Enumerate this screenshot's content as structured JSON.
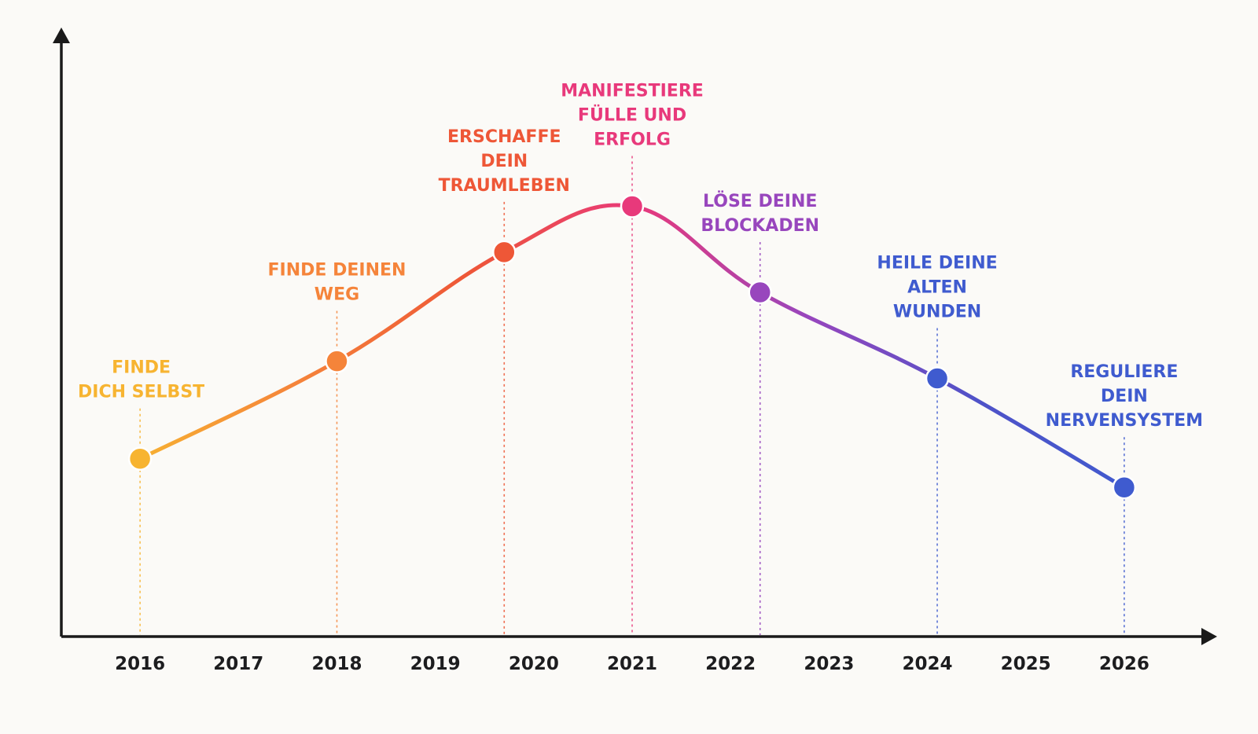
{
  "chart_data": {
    "type": "line",
    "title": "",
    "xlabel": "",
    "ylabel": "",
    "x_ticks": [
      "2016",
      "2017",
      "2018",
      "2019",
      "2020",
      "2021",
      "2022",
      "2023",
      "2024",
      "2025",
      "2026"
    ],
    "xlim": [
      2015.2,
      2026.8
    ],
    "ylim": [
      0,
      10
    ],
    "y_axis_values_shown": false,
    "grid": false,
    "legend": "none",
    "series": [
      {
        "points": [
          {
            "x": 2016.0,
            "y": 3.1,
            "label": [
              "FINDE",
              "DICH SELBST"
            ],
            "color": "#f7b431"
          },
          {
            "x": 2018.0,
            "y": 4.8,
            "label": [
              "FINDE DEINEN",
              "WEG"
            ],
            "color": "#f5843a"
          },
          {
            "x": 2019.7,
            "y": 6.7,
            "label": [
              "ERSCHAFFE",
              "DEIN",
              "TRAUMLEBEN"
            ],
            "color": "#ee5737"
          },
          {
            "x": 2021.0,
            "y": 7.5,
            "label": [
              "MANIFESTIERE",
              "FÜLLE UND",
              "ERFOLG"
            ],
            "color": "#e8397b"
          },
          {
            "x": 2022.3,
            "y": 6.0,
            "label": [
              "LÖSE DEINE",
              "BLOCKADEN"
            ],
            "color": "#9846bd"
          },
          {
            "x": 2024.1,
            "y": 4.5,
            "label": [
              "HEILE DEINE",
              "ALTEN",
              "WUNDEN"
            ],
            "color": "#3f5bcf"
          },
          {
            "x": 2026.0,
            "y": 2.6,
            "label": [
              "REGULIERE",
              "DEIN",
              "NERVENSYSTEM"
            ],
            "color": "#3f5bcf"
          }
        ]
      }
    ],
    "colors": {
      "axis": "#1a1a1a",
      "gradient": [
        "#f7b431",
        "#f5843a",
        "#ee5737",
        "#e8397b",
        "#9846bd",
        "#4f52c8",
        "#3f5bcf"
      ]
    }
  }
}
